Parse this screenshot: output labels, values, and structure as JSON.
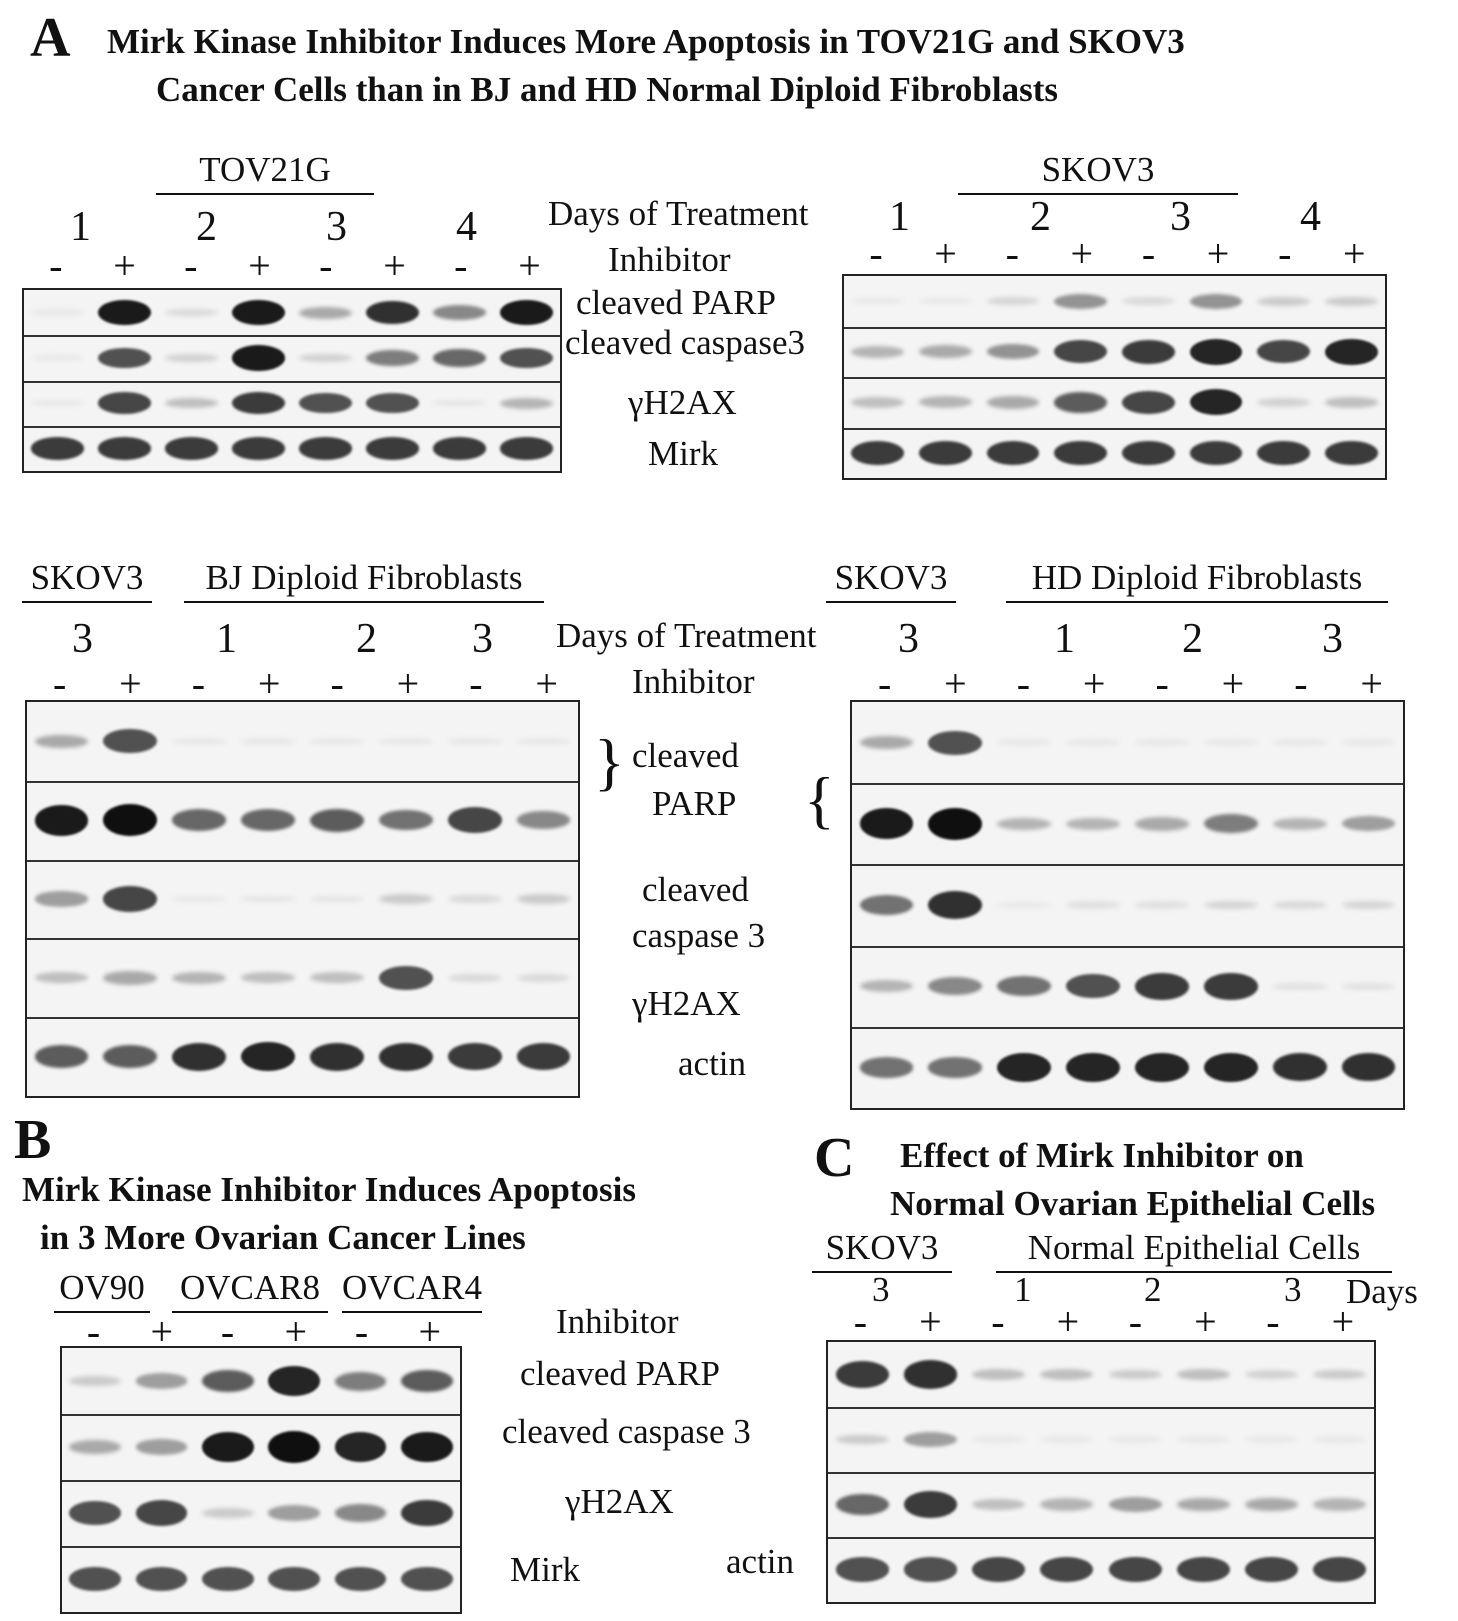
{
  "panel_A": {
    "letter": "A",
    "title_line1": "Mirk Kinase Inhibitor Induces More Apoptosis in TOV21G and SKOV3",
    "title_line2": "Cancer Cells than in BJ and HD Normal Diploid Fibroblasts",
    "top_left": {
      "cell_line": "TOV21G",
      "days": [
        "1",
        "2",
        "3",
        "4"
      ],
      "treatment": [
        "-",
        "+",
        "-",
        "+",
        "-",
        "+",
        "-",
        "+"
      ]
    },
    "top_right": {
      "cell_line": "SKOV3",
      "days": [
        "1",
        "2",
        "3",
        "4"
      ],
      "treatment": [
        "-",
        "+",
        "-",
        "+",
        "-",
        "+",
        "-",
        "+"
      ]
    },
    "top_labels": {
      "days_of_treatment": "Days of Treatment",
      "inhibitor": "Inhibitor",
      "rows": [
        "cleaved PARP",
        "cleaved caspase3",
        "γH2AX",
        "Mirk"
      ]
    },
    "bottom_left": {
      "control_line": "SKOV3",
      "cell_line": "BJ Diploid Fibroblasts",
      "control_day": "3",
      "days": [
        "1",
        "2",
        "3"
      ],
      "treatment": [
        "-",
        "+",
        "-",
        "+",
        "-",
        "+",
        "-",
        "+"
      ]
    },
    "bottom_right": {
      "control_line": "SKOV3",
      "cell_line": "HD Diploid Fibroblasts",
      "control_day": "3",
      "days": [
        "1",
        "2",
        "3"
      ],
      "treatment": [
        "-",
        "+",
        "-",
        "+",
        "-",
        "+",
        "-",
        "+"
      ]
    },
    "bottom_labels": {
      "days_of_treatment": "Days of Treatment",
      "inhibitor": "Inhibitor",
      "cleaved_parp_line1": "cleaved",
      "cleaved_parp_line2": "PARP",
      "caspase_line1": "cleaved",
      "caspase_line2": "caspase 3",
      "gh2ax": "γH2AX",
      "actin": "actin",
      "brace_right": "}",
      "brace_left": "{"
    }
  },
  "panel_B": {
    "letter": "B",
    "title_line1": "Mirk Kinase Inhibitor Induces Apoptosis",
    "title_line2": "in 3 More Ovarian Cancer Lines",
    "cell_lines": [
      "OV90",
      "OVCAR8",
      "OVCAR4"
    ],
    "treatment": [
      "-",
      "+",
      "-",
      "+",
      "-",
      "+"
    ],
    "inhibitor": "Inhibitor",
    "rows": [
      "cleaved PARP",
      "cleaved caspase 3",
      "γH2AX",
      "Mirk"
    ]
  },
  "panel_C": {
    "letter": "C",
    "title_line1": "Effect of Mirk Inhibitor on",
    "title_line2": "Normal Ovarian Epithelial Cells",
    "control_line": "SKOV3",
    "cell_line": "Normal Epithelial Cells",
    "control_day": "3",
    "days": [
      "1",
      "2",
      "3"
    ],
    "days_label": "Days",
    "treatment": [
      "-",
      "+",
      "-",
      "+",
      "-",
      "+",
      "-",
      "+"
    ],
    "row_label": "actin"
  },
  "blots": {
    "A_top_left": [
      [
        0.02,
        0.95,
        0.08,
        0.95,
        0.3,
        0.85,
        0.45,
        0.95
      ],
      [
        0.02,
        0.7,
        0.12,
        0.95,
        0.12,
        0.5,
        0.6,
        0.7
      ],
      [
        0.02,
        0.75,
        0.2,
        0.8,
        0.7,
        0.7,
        0.03,
        0.25
      ],
      [
        0.8,
        0.8,
        0.8,
        0.8,
        0.8,
        0.8,
        0.8,
        0.8
      ]
    ],
    "A_top_right": [
      [
        0.02,
        0.02,
        0.1,
        0.4,
        0.08,
        0.4,
        0.15,
        0.15
      ],
      [
        0.25,
        0.3,
        0.4,
        0.75,
        0.8,
        0.9,
        0.75,
        0.9
      ],
      [
        0.2,
        0.25,
        0.3,
        0.65,
        0.75,
        0.9,
        0.12,
        0.2
      ],
      [
        0.8,
        0.8,
        0.8,
        0.8,
        0.8,
        0.8,
        0.8,
        0.8
      ]
    ],
    "A_bottom_left": [
      [
        0.3,
        0.7,
        0.02,
        0.02,
        0.02,
        0.02,
        0.02,
        0.02
      ],
      [
        0.95,
        1.0,
        0.6,
        0.6,
        0.65,
        0.55,
        0.75,
        0.45
      ],
      [
        0.35,
        0.75,
        0.02,
        0.03,
        0.03,
        0.15,
        0.08,
        0.15
      ],
      [
        0.2,
        0.3,
        0.25,
        0.2,
        0.2,
        0.7,
        0.08,
        0.08
      ],
      [
        0.65,
        0.65,
        0.85,
        0.9,
        0.85,
        0.85,
        0.8,
        0.8
      ]
    ],
    "A_bottom_right": [
      [
        0.3,
        0.7,
        0.02,
        0.02,
        0.02,
        0.02,
        0.02,
        0.02
      ],
      [
        0.95,
        1.0,
        0.25,
        0.25,
        0.3,
        0.5,
        0.25,
        0.35
      ],
      [
        0.55,
        0.85,
        0.02,
        0.05,
        0.05,
        0.1,
        0.08,
        0.1
      ],
      [
        0.25,
        0.45,
        0.55,
        0.7,
        0.8,
        0.8,
        0.05,
        0.05
      ],
      [
        0.55,
        0.55,
        0.9,
        0.9,
        0.9,
        0.9,
        0.85,
        0.85
      ]
    ],
    "B": [
      [
        0.15,
        0.35,
        0.65,
        0.9,
        0.5,
        0.65
      ],
      [
        0.3,
        0.35,
        0.95,
        1.0,
        0.9,
        0.95
      ],
      [
        0.7,
        0.75,
        0.15,
        0.35,
        0.45,
        0.8
      ],
      [
        0.7,
        0.7,
        0.7,
        0.7,
        0.7,
        0.7
      ]
    ],
    "C": [
      [
        0.8,
        0.85,
        0.2,
        0.2,
        0.15,
        0.2,
        0.12,
        0.15
      ],
      [
        0.15,
        0.35,
        0.02,
        0.02,
        0.02,
        0.02,
        0.02,
        0.02
      ],
      [
        0.6,
        0.8,
        0.2,
        0.25,
        0.35,
        0.3,
        0.3,
        0.25
      ],
      [
        0.7,
        0.7,
        0.75,
        0.75,
        0.75,
        0.75,
        0.75,
        0.75
      ]
    ]
  }
}
